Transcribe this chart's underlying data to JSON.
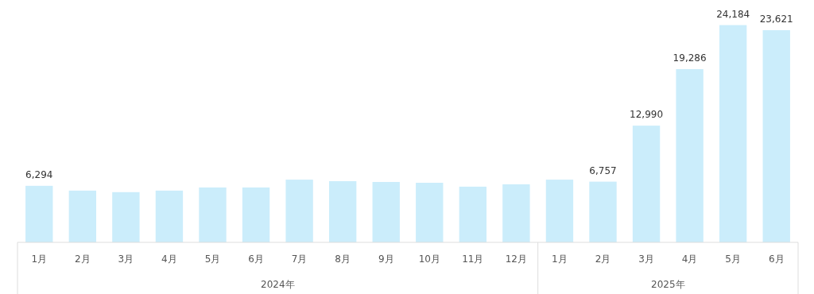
{
  "chart_data": {
    "type": "bar",
    "categories": [
      "1月",
      "2月",
      "3月",
      "4月",
      "5月",
      "6月",
      "7月",
      "8月",
      "9月",
      "10月",
      "11月",
      "12月",
      "1月",
      "2月",
      "3月",
      "4月",
      "5月",
      "6月"
    ],
    "values": [
      6294,
      5760,
      5590,
      5760,
      6110,
      6110,
      6980,
      6810,
      6720,
      6630,
      6200,
      6460,
      6980,
      6757,
      12990,
      19286,
      24184,
      23621
    ],
    "value_labels": [
      "6,294",
      null,
      null,
      null,
      null,
      null,
      null,
      null,
      null,
      null,
      null,
      null,
      null,
      "6,757",
      "12,990",
      "19,286",
      "24,184",
      "23,621"
    ],
    "color": "#cbedfb",
    "ylim": [
      0,
      24500
    ],
    "annotations": [
      "2024年",
      "2025年"
    ]
  }
}
